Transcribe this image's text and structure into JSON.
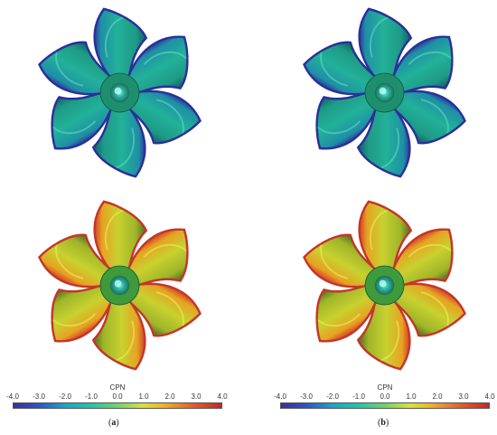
{
  "propellers": [
    {
      "id": "top-left",
      "palette": "suction",
      "hub": "hub-teal"
    },
    {
      "id": "top-right",
      "palette": "suction",
      "hub": "hub-teal"
    },
    {
      "id": "bottom-left",
      "palette": "pressure",
      "hub": "hub-teal"
    },
    {
      "id": "bottom-right",
      "palette": "pressure",
      "hub": "hub-teal"
    }
  ],
  "colorbars": [
    {
      "title": "CPN",
      "ticks": [
        "-4.0",
        "-3.0",
        "-2.0",
        "-1.0",
        "0.0",
        "1.0",
        "2.0",
        "3.0",
        "4.0"
      ]
    },
    {
      "title": "CPN",
      "ticks": [
        "-4.0",
        "-3.0",
        "-2.0",
        "-1.0",
        "0.0",
        "1.0",
        "2.0",
        "3.0",
        "4.0"
      ]
    }
  ],
  "captions": [
    {
      "open": "(",
      "letter": "a",
      "close": ")"
    },
    {
      "open": "(",
      "letter": "b",
      "close": ")"
    }
  ],
  "colors": {
    "suction_tip": "#2c2f9a",
    "suction_body": "#1fa79a",
    "pressure_body": "#b9c92a",
    "pressure_edge": "#d0392a",
    "hub": "#2fb8a6"
  }
}
